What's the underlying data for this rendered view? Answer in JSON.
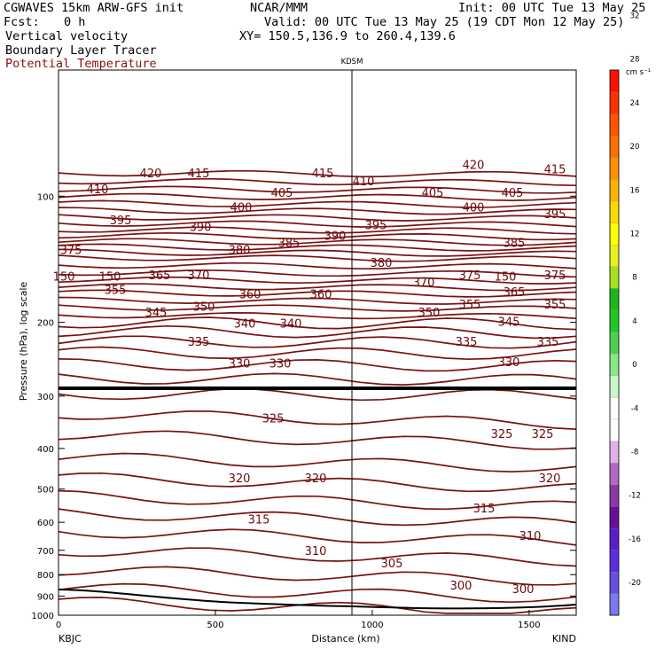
{
  "header": {
    "model": "CGWAVES 15km ARW-GFS init",
    "org": "NCAR/MMM",
    "init": "Init: 00 UTC Tue 13 May 25",
    "fcst_label": "Fcst:",
    "fcst_value": "0 h",
    "valid": "Valid: 00 UTC Tue 13 May 25 (19 CDT Mon 12 May 25)",
    "field1": "Vertical velocity",
    "xy": "XY= 150.5,136.9 to 260.4,139.6",
    "field2": "Boundary Layer Tracer",
    "field3": "Potential Temperature"
  },
  "chart_data": {
    "type": "cross-section contour",
    "station_marker": "KDSM",
    "station_marker_distance_km": 930,
    "xlabel": "Distance (km)",
    "ylabel": "Pressure (hPa), log scale",
    "xlim": [
      0,
      1650
    ],
    "ylim": [
      1000,
      50
    ],
    "x_ticks": [
      0,
      500,
      1000,
      1500
    ],
    "y_ticks": [
      100,
      200,
      300,
      400,
      500,
      600,
      700,
      800,
      900,
      1000
    ],
    "left_endpoint": "KBJC",
    "right_endpoint": "KIND",
    "colorbar": {
      "units": "cm s⁻¹",
      "levels": [
        -20,
        -16,
        -12,
        -8,
        -4,
        0,
        4,
        8,
        12,
        16,
        20,
        24,
        28,
        32,
        36
      ],
      "colors": [
        "#7b78f0",
        "#6450e0",
        "#5a2ee0",
        "#5a1ec8",
        "#6a0e9a",
        "#8a3aa6",
        "#b268c4",
        "#e2b0e6",
        "#ffffff",
        "#ffffff",
        "#c8f7c8",
        "#86e888",
        "#4ed04e",
        "#22c822",
        "#1cb81c",
        "#a6e020",
        "#e8f020",
        "#ffff00",
        "#ffd800",
        "#ffb400",
        "#ff9000",
        "#ff7000",
        "#ff5400",
        "#ff3000",
        "#ff1000"
      ]
    },
    "theta_labels": [
      {
        "v": "420",
        "x": 170,
        "p": 88
      },
      {
        "v": "415",
        "x": 224,
        "p": 88
      },
      {
        "v": "415",
        "x": 364,
        "p": 88
      },
      {
        "v": "420",
        "x": 534,
        "p": 84
      },
      {
        "v": "415",
        "x": 626,
        "p": 86
      },
      {
        "v": "410",
        "x": 110,
        "p": 96
      },
      {
        "v": "410",
        "x": 410,
        "p": 92
      },
      {
        "v": "405",
        "x": 318,
        "p": 98
      },
      {
        "v": "405",
        "x": 488,
        "p": 98
      },
      {
        "v": "405",
        "x": 578,
        "p": 98
      },
      {
        "v": "400",
        "x": 272,
        "p": 106
      },
      {
        "v": "400",
        "x": 534,
        "p": 106
      },
      {
        "v": "395",
        "x": 136,
        "p": 114
      },
      {
        "v": "395",
        "x": 424,
        "p": 117
      },
      {
        "v": "395",
        "x": 626,
        "p": 110
      },
      {
        "v": "390",
        "x": 226,
        "p": 118
      },
      {
        "v": "390",
        "x": 378,
        "p": 124
      },
      {
        "v": "385",
        "x": 326,
        "p": 129
      },
      {
        "v": "385",
        "x": 580,
        "p": 129
      },
      {
        "v": "380",
        "x": 270,
        "p": 134
      },
      {
        "v": "380",
        "x": 430,
        "p": 144
      },
      {
        "v": "375",
        "x": 80,
        "p": 134
      },
      {
        "v": "365",
        "x": 180,
        "p": 154
      },
      {
        "v": "370",
        "x": 224,
        "p": 154
      },
      {
        "v": "370",
        "x": 478,
        "p": 160
      },
      {
        "v": "375",
        "x": 530,
        "p": 154
      },
      {
        "v": "375",
        "x": 626,
        "p": 154
      },
      {
        "v": "355",
        "x": 130,
        "p": 167
      },
      {
        "v": "365",
        "x": 580,
        "p": 169
      },
      {
        "v": "360",
        "x": 282,
        "p": 171
      },
      {
        "v": "360",
        "x": 362,
        "p": 171
      },
      {
        "v": "350",
        "x": 230,
        "p": 183
      },
      {
        "v": "355",
        "x": 530,
        "p": 181
      },
      {
        "v": "355",
        "x": 626,
        "p": 181
      },
      {
        "v": "345",
        "x": 176,
        "p": 189
      },
      {
        "v": "350",
        "x": 484,
        "p": 189
      },
      {
        "v": "340",
        "x": 276,
        "p": 201
      },
      {
        "v": "340",
        "x": 328,
        "p": 201
      },
      {
        "v": "345",
        "x": 574,
        "p": 199
      },
      {
        "v": "335",
        "x": 224,
        "p": 222
      },
      {
        "v": "335",
        "x": 526,
        "p": 222
      },
      {
        "v": "335",
        "x": 618,
        "p": 222
      },
      {
        "v": "330",
        "x": 270,
        "p": 250
      },
      {
        "v": "330",
        "x": 316,
        "p": 250
      },
      {
        "v": "330",
        "x": 574,
        "p": 248
      },
      {
        "v": "325",
        "x": 308,
        "p": 338
      },
      {
        "v": "325",
        "x": 566,
        "p": 368
      },
      {
        "v": "325",
        "x": 612,
        "p": 368
      },
      {
        "v": "320",
        "x": 270,
        "p": 470
      },
      {
        "v": "320",
        "x": 356,
        "p": 470
      },
      {
        "v": "320",
        "x": 620,
        "p": 470
      },
      {
        "v": "315",
        "x": 292,
        "p": 590
      },
      {
        "v": "315",
        "x": 546,
        "p": 555
      },
      {
        "v": "310",
        "x": 356,
        "p": 700
      },
      {
        "v": "310",
        "x": 598,
        "p": 645
      },
      {
        "v": "305",
        "x": 442,
        "p": 750
      },
      {
        "v": "300",
        "x": 520,
        "p": 848
      },
      {
        "v": "300",
        "x": 590,
        "p": 865
      },
      {
        "v": "150",
        "x": 72,
        "p": 155
      },
      {
        "v": "150",
        "x": 124,
        "p": 155
      },
      {
        "v": "150",
        "x": 570,
        "p": 155
      }
    ]
  }
}
